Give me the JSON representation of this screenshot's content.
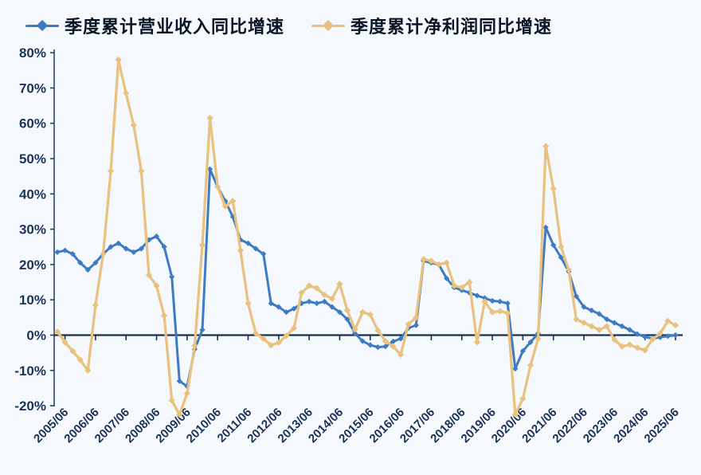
{
  "chart_data": {
    "type": "line",
    "title": "",
    "xlabel": "",
    "ylabel": "",
    "grid": false,
    "legend_position": "top",
    "ylim": [
      -20,
      80
    ],
    "y_tick_labels": [
      "80%",
      "70%",
      "60%",
      "50%",
      "40%",
      "30%",
      "20%",
      "10%",
      "0%",
      "-10%",
      "-20%"
    ],
    "x_tick_labels": [
      "2005/06",
      "2006/06",
      "2007/06",
      "2008/06",
      "2009/06",
      "2010/06",
      "2011/06",
      "2012/06",
      "2013/06",
      "2014/06",
      "2015/06",
      "2016/06",
      "2017/06",
      "2018/06",
      "2019/06",
      "2020/06",
      "2021/06",
      "2022/06",
      "2023/06",
      "2024/06",
      "2025/06"
    ],
    "x_frequency": "quarterly",
    "x_first_point": "2005/03",
    "x_last_point": "2025/06",
    "axis_color": "#1d3a63",
    "background_color": "#f5f9fd",
    "series": [
      {
        "name": "季度累计营业收入同比增速",
        "color": "#3d7bc2",
        "marker": "diamond",
        "values": [
          23.5,
          24,
          23,
          20.5,
          18.5,
          20.5,
          23,
          25,
          26,
          24.5,
          23.5,
          24.5,
          27,
          28,
          25,
          16.5,
          -13,
          -14.5,
          -4,
          1.5,
          47,
          42,
          38,
          33.5,
          27,
          26,
          24.5,
          23,
          9,
          8,
          6.5,
          7.5,
          9,
          9.5,
          9,
          9.5,
          8,
          6.5,
          4.5,
          0.5,
          -1.7,
          -2.8,
          -3.4,
          -3.2,
          -1.8,
          -1,
          2,
          2.8,
          21,
          20.5,
          19.9,
          16.1,
          13.5,
          12.7,
          12,
          11.2,
          10.5,
          9.7,
          9.5,
          9,
          -9.5,
          -4.5,
          -2,
          0.5,
          30.5,
          25.5,
          22,
          18,
          11,
          8,
          7,
          6,
          4.5,
          3.5,
          2.5,
          1.5,
          0.3,
          -0.5,
          -1,
          -0.6,
          -0.3,
          0
        ]
      },
      {
        "name": "季度累计净利润同比增速",
        "color": "#eac27f",
        "marker": "diamond",
        "values": [
          1,
          -2,
          -4.5,
          -7,
          -10,
          8.5,
          23,
          46.5,
          78,
          68.5,
          59.5,
          46.5,
          17,
          14,
          5.5,
          -18.5,
          -22.5,
          -16.5,
          -3,
          25.5,
          61.5,
          42,
          36.5,
          38,
          24,
          9,
          0.5,
          -1,
          -2.9,
          -2.1,
          -0.2,
          2,
          12,
          14,
          13.3,
          11.4,
          10.3,
          14.5,
          7,
          1.6,
          6.5,
          5.8,
          1.3,
          -1.7,
          -3.2,
          -5.5,
          3.1,
          5,
          21.5,
          21,
          20,
          20.5,
          14,
          13.5,
          15,
          -2,
          9.5,
          6.5,
          6.8,
          6.2,
          -22.5,
          -18,
          -8.5,
          -1,
          53.5,
          41.5,
          25,
          18.5,
          4.5,
          3.5,
          2.5,
          1.5,
          2.5,
          -1.3,
          -3.2,
          -2.7,
          -3.6,
          -4.3,
          -1.2,
          0.5,
          4,
          2.8
        ]
      }
    ]
  }
}
